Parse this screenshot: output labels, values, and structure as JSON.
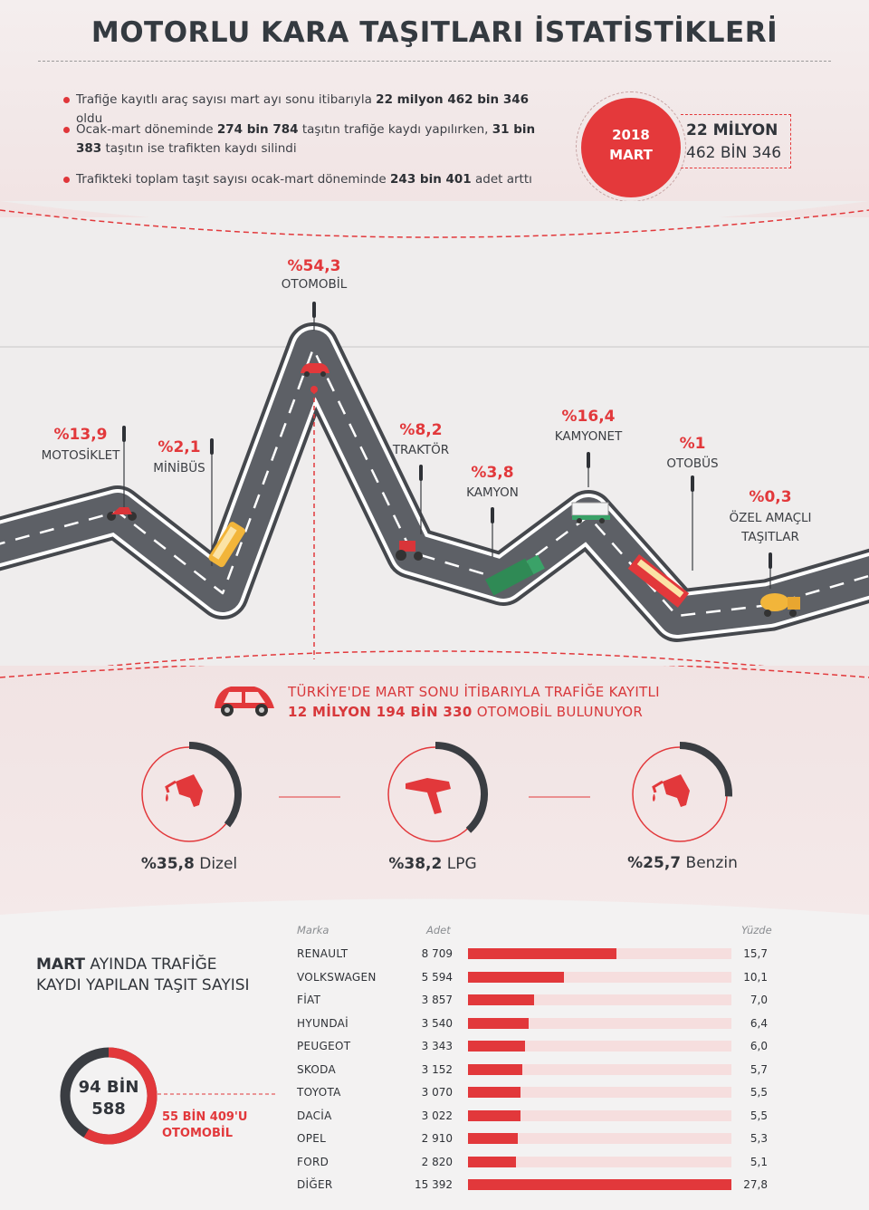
{
  "header": {
    "title": "MOTORLU KARA TAŞITLARI İSTATİSTİKLERİ",
    "bullets": [
      {
        "pre": "Trafiğe kayıtlı araç sayısı mart ayı sonu itibarıyla ",
        "b1": "22 milyon 462 bin 346",
        "mid": " oldu",
        "b2": "",
        "post": ""
      },
      {
        "pre": "Ocak-mart döneminde ",
        "b1": "274 bin 784",
        "mid": " taşıtın trafiğe kaydı yapılırken, ",
        "b2": "31 bin 383",
        "post": " taşıtın ise trafikten kaydı silindi"
      },
      {
        "pre": "Trafikteki toplam taşıt sayısı ocak-mart döneminde ",
        "b1": "243 bin 401",
        "mid": " adet arttı",
        "b2": "",
        "post": ""
      }
    ],
    "badge": {
      "year": "2018",
      "month": "MART",
      "line1": "22 MİLYON",
      "line2": "462 BİN 346"
    }
  },
  "chart_data": [
    {
      "type": "line",
      "categories": [
        "MOTOSİKLET",
        "MİNİBÜS",
        "OTOMOBİL",
        "TRAKTÖR",
        "KAMYON",
        "KAMYONET",
        "OTOBÜS",
        "ÖZEL AMAÇLI TAŞITLAR"
      ],
      "values": [
        13.9,
        2.1,
        54.3,
        8.2,
        3.8,
        16.4,
        1,
        0.3
      ],
      "value_labels": [
        "%13,9",
        "%2,1",
        "%54,3",
        "%8,2",
        "%3,8",
        "%16,4",
        "%1",
        "%0,3"
      ],
      "category_labels": [
        [
          "MOTOSİKLET"
        ],
        [
          "MİNİBÜS"
        ],
        [
          "OTOMOBİL"
        ],
        [
          "TRAKTÖR"
        ],
        [
          "KAMYON"
        ],
        [
          "KAMYONET"
        ],
        [
          "OTOBÜS"
        ],
        [
          "ÖZEL AMAÇLI",
          "TAŞITLAR"
        ]
      ]
    },
    {
      "type": "pie",
      "categories": [
        "Dizel",
        "LPG",
        "Benzin"
      ],
      "values": [
        35.8,
        38.2,
        25.7
      ],
      "value_labels": [
        "%35,8",
        "%38,2",
        "%25,7"
      ]
    },
    {
      "type": "bar",
      "columns": {
        "brand": "Marka",
        "count": "Adet",
        "pct": "Yüzde"
      },
      "categories": [
        "RENAULT",
        "VOLKSWAGEN",
        "FİAT",
        "HYUNDAİ",
        "PEUGEOT",
        "SKODA",
        "TOYOTA",
        "DACİA",
        "OPEL",
        "FORD",
        "DİĞER"
      ],
      "counts": [
        "8 709",
        "5 594",
        "3 857",
        "3 540",
        "3 343",
        "3 152",
        "3 070",
        "3 022",
        "2 910",
        "2 820",
        "15 392"
      ],
      "values": [
        15.7,
        10.1,
        7.0,
        6.4,
        6.0,
        5.7,
        5.5,
        5.5,
        5.3,
        5.1,
        27.8
      ],
      "value_labels": [
        "15,7",
        "10,1",
        "7,0",
        "6,4",
        "6,0",
        "5,7",
        "5,5",
        "5,5",
        "5,3",
        "5,1",
        "27,8"
      ],
      "xlim": [
        0,
        27.8
      ]
    }
  ],
  "car_summary": {
    "line1": "TÜRKİYE'DE MART SONU İTİBARIYLA TRAFİĞE KAYITLI",
    "line2_bold": "12 MİLYON 194 BİN 330",
    "line2_rest": " OTOMOBİL BULUNUYOR"
  },
  "registrations": {
    "title_bold": "MART",
    "title_rest": " AYINDA TRAFİĞE KAYDI YAPILAN TAŞIT SAYISI",
    "total_l1": "94 BİN",
    "total_l2": "588",
    "total_value": 94588,
    "car_value": 55409,
    "car_l1": "55 BİN 409'U",
    "car_l2": "OTOMOBİL"
  },
  "colors": {
    "accent": "#e2383b",
    "dark": "#343a40",
    "road": "#4a4d52",
    "pale": "#f6dede"
  }
}
